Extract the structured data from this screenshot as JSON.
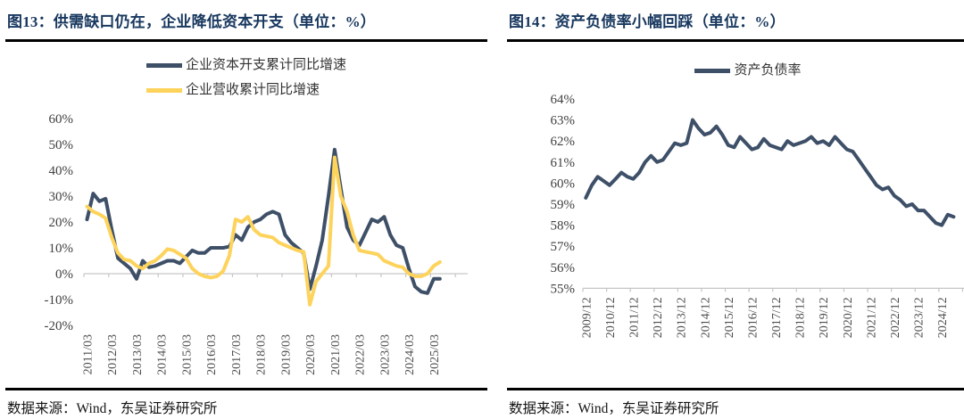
{
  "chart_data": [
    {
      "type": "line",
      "title": "图13：供需缺口仍在，企业降低资本开支（单位：%）",
      "source": "数据来源：Wind，东吴证券研究所",
      "ylabel": "",
      "ylim": [
        -20,
        60
      ],
      "y_tick_step": 10,
      "y_tick_suffix": "%",
      "axis_cross_at": 0,
      "grid": false,
      "legend_position": "top",
      "x_tick_every": 4,
      "x_tick_labels": [
        "2011/03",
        "2012/03",
        "2013/03",
        "2014/03",
        "2015/03",
        "2016/03",
        "2017/03",
        "2018/03",
        "2019/03",
        "2020/03",
        "2021/03",
        "2022/03",
        "2023/03",
        "2024/03",
        "2025/03"
      ],
      "categories": [
        "2011/03",
        "2011/06",
        "2011/09",
        "2011/12",
        "2012/03",
        "2012/06",
        "2012/09",
        "2012/12",
        "2013/03",
        "2013/06",
        "2013/09",
        "2013/12",
        "2014/03",
        "2014/06",
        "2014/09",
        "2014/12",
        "2015/03",
        "2015/06",
        "2015/09",
        "2015/12",
        "2016/03",
        "2016/06",
        "2016/09",
        "2016/12",
        "2017/03",
        "2017/06",
        "2017/09",
        "2017/12",
        "2018/03",
        "2018/06",
        "2018/09",
        "2018/12",
        "2019/03",
        "2019/06",
        "2019/09",
        "2019/12",
        "2020/03",
        "2020/06",
        "2020/09",
        "2020/12",
        "2021/03",
        "2021/06",
        "2021/09",
        "2021/12",
        "2022/03",
        "2022/06",
        "2022/09",
        "2022/12",
        "2023/03",
        "2023/06",
        "2023/09",
        "2023/12",
        "2024/03",
        "2024/06",
        "2024/09",
        "2024/12",
        "2025/03",
        "2025/06"
      ],
      "series": [
        {
          "name": "企业资本开支累计同比增速",
          "color": "#3E4F68",
          "values": [
            21,
            31,
            28,
            29,
            17,
            6,
            4,
            2,
            -2,
            5,
            2.5,
            3,
            4,
            5,
            5,
            4,
            6.5,
            9,
            8,
            8,
            10,
            10,
            10,
            10.5,
            15,
            13,
            18,
            20,
            21,
            23,
            24,
            23,
            15,
            12,
            10,
            8,
            -6,
            3,
            13,
            30,
            48,
            33,
            18,
            13,
            11,
            16,
            21,
            20,
            22,
            15,
            11,
            10,
            2,
            -5,
            -7,
            -7.5,
            -2,
            -2
          ]
        },
        {
          "name": "企业营收累计同比增速",
          "color": "#FDD35C",
          "values": [
            26,
            24,
            23,
            21.5,
            14,
            8,
            5.5,
            5,
            3,
            2,
            4,
            5,
            7,
            9.5,
            9,
            7.5,
            6,
            2,
            0,
            -1,
            -1.5,
            -1,
            1,
            7,
            21,
            20,
            22,
            17,
            15,
            14.5,
            14,
            12,
            11,
            10,
            9,
            8.5,
            -12,
            -3,
            0,
            3,
            45,
            30,
            24,
            15,
            9,
            8.5,
            8,
            7.5,
            5,
            4,
            3,
            2.5,
            0,
            -1,
            -1,
            0,
            3,
            4.5
          ]
        }
      ]
    },
    {
      "type": "line",
      "title": "图14：资产负债率小幅回踩（单位：%）",
      "source": "数据来源：Wind，东吴证券研究所",
      "ylabel": "",
      "ylim": [
        55,
        64
      ],
      "y_tick_step": 1,
      "y_tick_suffix": "%",
      "axis_cross_at": 55,
      "grid": false,
      "legend_position": "top",
      "x_tick_every": 4,
      "x_tick_labels": [
        "2009/12",
        "2010/12",
        "2011/12",
        "2012/12",
        "2013/12",
        "2014/12",
        "2015/12",
        "2016/12",
        "2017/12",
        "2018/12",
        "2019/12",
        "2020/12",
        "2021/12",
        "2022/12",
        "2023/12",
        "2024/12"
      ],
      "categories": [
        "2009/12",
        "2010/03",
        "2010/06",
        "2010/09",
        "2010/12",
        "2011/03",
        "2011/06",
        "2011/09",
        "2011/12",
        "2012/03",
        "2012/06",
        "2012/09",
        "2012/12",
        "2013/03",
        "2013/06",
        "2013/09",
        "2013/12",
        "2014/03",
        "2014/06",
        "2014/09",
        "2014/12",
        "2015/03",
        "2015/06",
        "2015/09",
        "2015/12",
        "2016/03",
        "2016/06",
        "2016/09",
        "2016/12",
        "2017/03",
        "2017/06",
        "2017/09",
        "2017/12",
        "2018/03",
        "2018/06",
        "2018/09",
        "2018/12",
        "2019/03",
        "2019/06",
        "2019/09",
        "2019/12",
        "2020/03",
        "2020/06",
        "2020/09",
        "2020/12",
        "2021/03",
        "2021/06",
        "2021/09",
        "2021/12",
        "2022/03",
        "2022/06",
        "2022/09",
        "2022/12",
        "2023/03",
        "2023/06",
        "2023/09",
        "2023/12",
        "2024/03",
        "2024/06",
        "2024/09",
        "2024/12",
        "2025/03",
        "2025/06"
      ],
      "series": [
        {
          "name": "资产负债率",
          "color": "#3E4F68",
          "values": [
            59.3,
            59.9,
            60.3,
            60.1,
            59.9,
            60.2,
            60.5,
            60.3,
            60.2,
            60.5,
            61.0,
            61.3,
            61.0,
            61.1,
            61.5,
            61.9,
            61.8,
            61.9,
            63.0,
            62.6,
            62.3,
            62.4,
            62.7,
            62.3,
            61.8,
            61.7,
            62.2,
            61.9,
            61.6,
            61.7,
            62.1,
            61.8,
            61.7,
            61.6,
            62.0,
            61.8,
            61.9,
            62.0,
            62.2,
            61.9,
            62.0,
            61.8,
            62.2,
            61.9,
            61.6,
            61.5,
            61.1,
            60.7,
            60.3,
            59.9,
            59.7,
            59.8,
            59.4,
            59.2,
            58.9,
            59.0,
            58.7,
            58.7,
            58.4,
            58.1,
            58.0,
            58.5,
            58.4
          ]
        }
      ]
    }
  ]
}
